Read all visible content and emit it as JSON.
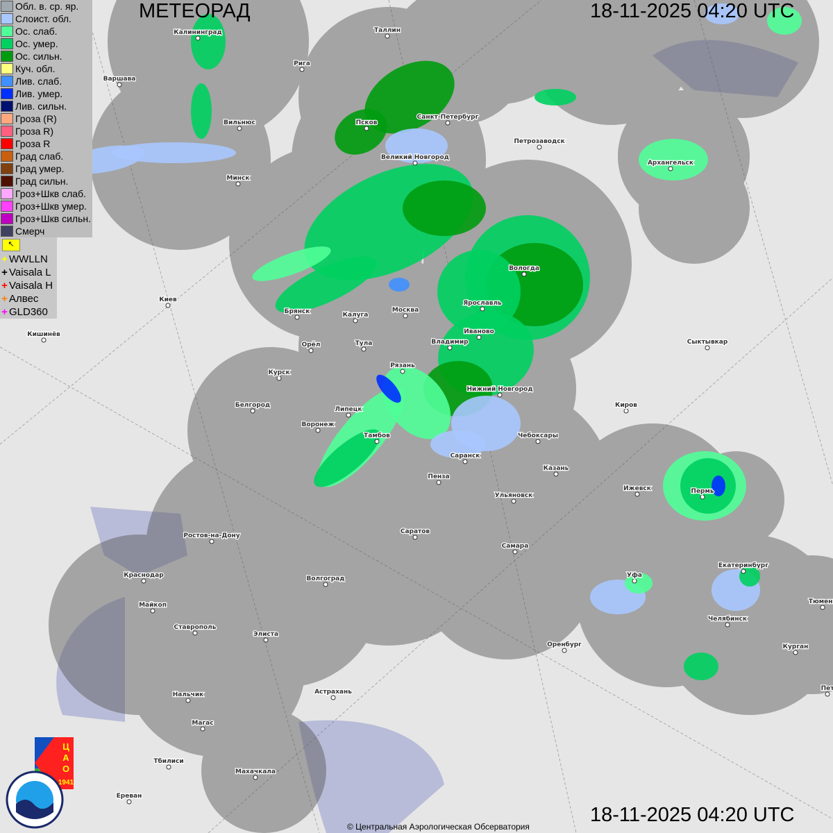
{
  "header": {
    "title": "МЕТЕОРАД",
    "timestamp_top": "18-11-2025  04:20 UTC",
    "timestamp_bottom": "18-11-2025  04:20 UTC"
  },
  "legend": [
    {
      "label": "Обл. в. ср. яр.",
      "color": "#a0a8b0"
    },
    {
      "label": "Слоист. обл.",
      "color": "#a8c8ff"
    },
    {
      "label": "Ос. слаб.",
      "color": "#50ff98"
    },
    {
      "label": "Ос. умер.",
      "color": "#00d060"
    },
    {
      "label": "Ос. сильн.",
      "color": "#009c10"
    },
    {
      "label": "Куч. обл.",
      "color": "#ffff80"
    },
    {
      "label": "Лив. слаб.",
      "color": "#4090ff"
    },
    {
      "label": "Лив. умер.",
      "color": "#0030ff"
    },
    {
      "label": "Лив. сильн.",
      "color": "#001070"
    },
    {
      "label": "Гроза (R)",
      "color": "#ffa880"
    },
    {
      "label": "Гроза R)",
      "color": "#ff6080"
    },
    {
      "label": "Гроза R",
      "color": "#ff0000"
    },
    {
      "label": "Град слаб.",
      "color": "#c86010"
    },
    {
      "label": "Град умер.",
      "color": "#804010"
    },
    {
      "label": "Град сильн.",
      "color": "#501000"
    },
    {
      "label": "Гроз+Шкв слаб.",
      "color": "#ffa8ff"
    },
    {
      "label": "Гроз+Шкв умер.",
      "color": "#ff40ff"
    },
    {
      "label": "Гроз+Шкв сильн.",
      "color": "#c000c0"
    },
    {
      "label": "Смерч",
      "color": "#404060"
    }
  ],
  "lightning_legend": [
    {
      "label": "WWLLN",
      "color": "#ffff00"
    },
    {
      "label": "Vaisala L",
      "color": "#000000"
    },
    {
      "label": "Vaisala H",
      "color": "#ff0000"
    },
    {
      "label": "Алвес",
      "color": "#ff8000"
    },
    {
      "label": "GLD360",
      "color": "#ff00ff"
    }
  ],
  "cities": [
    "Калининград",
    "Таллин",
    "Рига",
    "Варшава",
    "Псков",
    "Санкт-Петербург",
    "Петрозаводск",
    "Вильнюс",
    "Минск",
    "Великий Новгород",
    "Архангельск",
    "Вологда",
    "Ярославль",
    "Брянск",
    "Калуга",
    "Москва",
    "Киев",
    "Кишинёв",
    "Орёл",
    "Тула",
    "Иваново",
    "Владимир",
    "Сыктывкар",
    "Курск",
    "Рязань",
    "Нижний Новгород",
    "Белгород",
    "Киров",
    "Липецк",
    "Воронеж",
    "Тамбов",
    "Чебоксары",
    "Саранск",
    "Казань",
    "Пенза",
    "Ижевск",
    "Пермь",
    "Ульяновск",
    "Ростов-на-Дону",
    "Саратов",
    "Самара",
    "Уфа",
    "Екатеринбург",
    "Краснодар",
    "Волгоград",
    "Майкоп",
    "Тюмень",
    "Челябинск",
    "Ставрополь",
    "Элиста",
    "Оренбург",
    "Курган",
    "Нальчик",
    "Астрахань",
    "Магас",
    "Тбилиси",
    "Махачкала",
    "Ереван",
    "Пет"
  ],
  "logos": {
    "cao": "ЦАО 1941",
    "roshydromet": "РОСГИДРОМЕТ ROSHYDROMET"
  },
  "copyright": "© Центральная Аэрологическая Обсерватория",
  "colors": {
    "radar_coverage": "#9a9a9a",
    "map_background": "#e6e6e6",
    "water": "#b8bcd8"
  }
}
